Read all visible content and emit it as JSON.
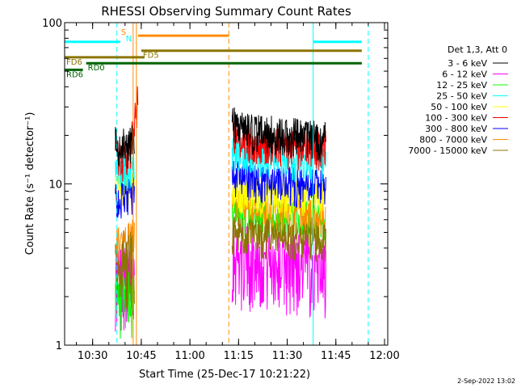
{
  "chart_data": {
    "type": "line",
    "title": "RHESSI Observing Summary Count Rates",
    "xlabel": "Start Time (25-Dec-17 10:21:22)",
    "ylabel": "Count Rate (s⁻¹ detector⁻¹)",
    "y_scale": "log",
    "ylim": [
      1,
      100
    ],
    "xlim": [
      "10:21:22",
      "12:01"
    ],
    "x_ticks": [
      "10:30",
      "10:45",
      "11:00",
      "11:15",
      "11:30",
      "11:45",
      "12:00"
    ],
    "y_ticks": [
      "1",
      "10",
      "100"
    ],
    "legend_title": "Det 1,3, Att 0",
    "legend_position": "right",
    "series": [
      {
        "name": "3 - 6 keV",
        "color": "#000000",
        "segments": [
          {
            "x": [
              "10:37",
              "10:38",
              "10:39",
              "10:40",
              "10:41",
              "10:42",
              "10:43"
            ],
            "y": [
              18,
              17,
              18,
              17,
              17,
              18,
              19
            ]
          },
          {
            "x": [
              "11:13",
              "11:15",
              "11:20",
              "11:25",
              "11:30",
              "11:35",
              "11:40",
              "11:42"
            ],
            "y": [
              24,
              22,
              21,
              21,
              20,
              20,
              19,
              19
            ]
          }
        ]
      },
      {
        "name": "6 - 12 keV",
        "color": "#ff00ff",
        "segments": [
          {
            "x": [
              "10:37",
              "10:39",
              "10:41",
              "10:43"
            ],
            "y": [
              2.7,
              2.7,
              2.6,
              3.0
            ]
          },
          {
            "x": [
              "11:13",
              "11:15",
              "11:20",
              "11:25",
              "11:30",
              "11:35",
              "11:40",
              "11:42"
            ],
            "y": [
              3.8,
              3.6,
              3.5,
              3.4,
              3.3,
              3.3,
              3.2,
              3.2
            ]
          }
        ]
      },
      {
        "name": "12 - 25 keV",
        "color": "#00ff00",
        "segments": [
          {
            "x": [
              "10:37",
              "10:39",
              "10:41",
              "10:43"
            ],
            "y": [
              1.8,
              1.7,
              1.8,
              2.2
            ]
          },
          {
            "x": [
              "11:13",
              "11:15",
              "11:20",
              "11:25",
              "11:30",
              "11:35",
              "11:40",
              "11:42"
            ],
            "y": [
              6.8,
              6.5,
              6.4,
              6.3,
              6.2,
              6.2,
              6.0,
              6.0
            ]
          }
        ]
      },
      {
        "name": "25 - 50 keV",
        "color": "#00ffff",
        "segments": [
          {
            "x": [
              "10:37",
              "10:39",
              "10:41",
              "10:43"
            ],
            "y": [
              12,
              12,
              12.5,
              14
            ]
          },
          {
            "x": [
              "11:13",
              "11:15",
              "11:20",
              "11:25",
              "11:30",
              "11:35",
              "11:40",
              "11:42"
            ],
            "y": [
              17,
              16,
              15.5,
              15,
              14.5,
              14,
              13.5,
              13
            ]
          }
        ]
      },
      {
        "name": "50 - 100 keV",
        "color": "#ffff00",
        "segments": [
          {
            "x": [
              "10:37",
              "10:39",
              "10:41",
              "10:43"
            ],
            "y": [
              9.0,
              9.0,
              9.5,
              10
            ]
          },
          {
            "x": [
              "11:13",
              "11:15",
              "11:20",
              "11:25",
              "11:30",
              "11:35",
              "11:40",
              "11:42"
            ],
            "y": [
              9.0,
              8.8,
              8.6,
              8.5,
              8.4,
              8.3,
              8.2,
              8.2
            ]
          }
        ]
      },
      {
        "name": "100 - 300 keV",
        "color": "#ff0000",
        "segments": [
          {
            "x": [
              "10:37",
              "10:38",
              "10:39",
              "10:40",
              "10:41",
              "10:42",
              "10:43",
              "10:44"
            ],
            "y": [
              15,
              14.5,
              14,
              15,
              15,
              18,
              25,
              33
            ]
          },
          {
            "x": [
              "11:13",
              "11:15",
              "11:20",
              "11:25",
              "11:30",
              "11:35",
              "11:40",
              "11:42"
            ],
            "y": [
              21,
              19,
              18,
              17.5,
              17,
              16.5,
              16.5,
              17
            ]
          }
        ]
      },
      {
        "name": "300 - 800 keV",
        "color": "#0000ff",
        "segments": [
          {
            "x": [
              "10:37",
              "10:39",
              "10:41",
              "10:43"
            ],
            "y": [
              8.0,
              8.2,
              8.5,
              9.0
            ]
          },
          {
            "x": [
              "11:13",
              "11:15",
              "11:20",
              "11:25",
              "11:30",
              "11:35",
              "11:40",
              "11:42"
            ],
            "y": [
              11.5,
              11,
              10.5,
              10.2,
              10,
              9.8,
              9.6,
              9.5
            ]
          }
        ]
      },
      {
        "name": "800 - 7000 keV",
        "color": "#ff8c00",
        "segments": [
          {
            "x": [
              "10:37",
              "10:39",
              "10:41",
              "10:43"
            ],
            "y": [
              4.2,
              4.3,
              4.5,
              4.8
            ]
          },
          {
            "x": [
              "11:13",
              "11:15",
              "11:20",
              "11:25",
              "11:30",
              "11:35",
              "11:40",
              "11:42"
            ],
            "y": [
              7.5,
              7.2,
              7.0,
              6.8,
              6.6,
              6.5,
              6.3,
              6.2
            ]
          }
        ]
      },
      {
        "name": "7000 - 15000 keV",
        "color": "#8b7500",
        "segments": [
          {
            "x": [
              "10:37",
              "10:39",
              "10:41",
              "10:43"
            ],
            "y": [
              3.2,
              3.3,
              3.4,
              3.6
            ]
          },
          {
            "x": [
              "11:13",
              "11:15",
              "11:20",
              "11:25",
              "11:30",
              "11:35",
              "11:40",
              "11:42"
            ],
            "y": [
              5.0,
              4.9,
              4.8,
              4.7,
              4.6,
              4.6,
              4.5,
              4.5
            ]
          }
        ]
      }
    ],
    "flag_bars": [
      {
        "label": "",
        "color": "#00ffff",
        "x": [
          "10:21:22",
          "10:38:30"
        ],
        "y": 76
      },
      {
        "label": "",
        "color": "#00ffff",
        "x": [
          "11:38",
          "11:53"
        ],
        "y": 76
      },
      {
        "label": "",
        "color": "#ff8c00",
        "x": [
          "10:44",
          "11:12"
        ],
        "y": 83
      },
      {
        "label": "FD5",
        "color": "#8b7500",
        "x": [
          "10:45",
          "11:53"
        ],
        "y": 67
      },
      {
        "label": "FD6",
        "color": "#8b7500",
        "x": [
          "10:21:22",
          "10:46"
        ],
        "y": 61
      },
      {
        "label": "RD0",
        "color": "#006400",
        "x": [
          "10:28",
          "11:53"
        ],
        "y": 56
      },
      {
        "label": "RD6",
        "color": "#006400",
        "x": [
          "10:21:22",
          "10:27"
        ],
        "y": 51
      }
    ],
    "flag_markers": [
      {
        "label": "S",
        "color": "#ff8c00",
        "x": "10:38:30"
      },
      {
        "label": "N",
        "color": "#00ffff",
        "x": "10:40"
      }
    ],
    "vertical_lines": [
      {
        "x": "10:21:22",
        "color": "#00ffff",
        "style": "solid"
      },
      {
        "x": "10:37:30",
        "color": "#00ffff",
        "style": "dashed"
      },
      {
        "x": "10:42:30",
        "color": "#ff8c00",
        "style": "solid"
      },
      {
        "x": "10:43:30",
        "color": "#ff8c00",
        "style": "solid"
      },
      {
        "x": "11:12",
        "color": "#ff8c00",
        "style": "dashed"
      },
      {
        "x": "11:38",
        "color": "#00ffff",
        "style": "solid"
      },
      {
        "x": "11:55",
        "color": "#00ffff",
        "style": "dashed"
      }
    ],
    "footer_date": "2-Sep-2022 13:02"
  }
}
